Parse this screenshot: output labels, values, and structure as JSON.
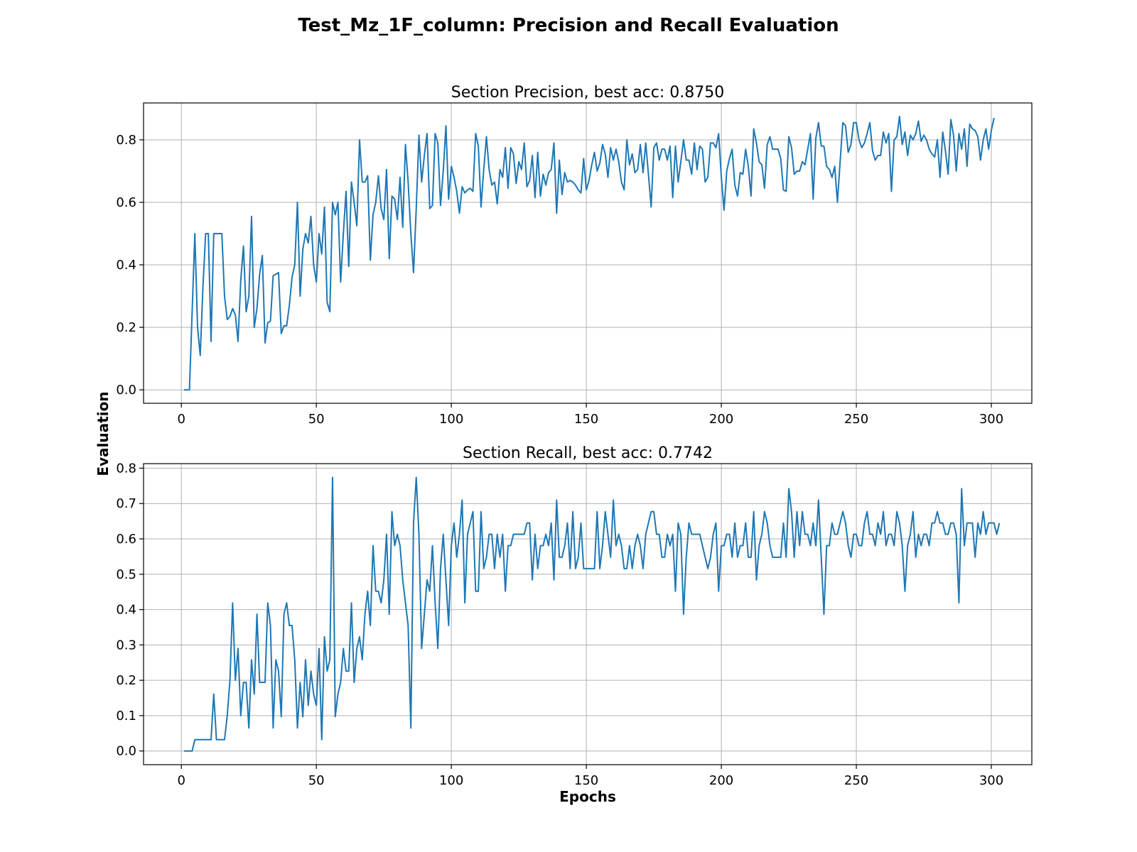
{
  "figure": {
    "title": "Test_Mz_1F_column:  Precision and Recall Evaluation",
    "xlabel": "Epochs",
    "ylabel": "Evaluation"
  },
  "chart_data": [
    {
      "type": "line",
      "title": "Section Precision, best acc: 0.8750",
      "xlim": [
        -14,
        315
      ],
      "ylim": [
        -0.043,
        0.918
      ],
      "xticks": [
        0,
        50,
        100,
        150,
        200,
        250,
        300
      ],
      "yticks": [
        0.0,
        0.2,
        0.4,
        0.6,
        0.8
      ],
      "ytick_labels": [
        "0.0",
        "0.2",
        "0.4",
        "0.6",
        "0.8"
      ],
      "grid": true,
      "color": "#1f77b4",
      "x_start": 1,
      "values": [
        0,
        0,
        0,
        0.25,
        0.5,
        0.2,
        0.11,
        0.33,
        0.5,
        0.5,
        0.155,
        0.5,
        0.5,
        0.5,
        0.5,
        0.3,
        0.225,
        0.235,
        0.26,
        0.24,
        0.155,
        0.35,
        0.46,
        0.25,
        0.3,
        0.555,
        0.2,
        0.26,
        0.37,
        0.43,
        0.15,
        0.215,
        0.22,
        0.365,
        0.37,
        0.375,
        0.18,
        0.205,
        0.205,
        0.27,
        0.36,
        0.4,
        0.6,
        0.3,
        0.45,
        0.5,
        0.47,
        0.555,
        0.4,
        0.345,
        0.5,
        0.435,
        0.585,
        0.28,
        0.25,
        0.6,
        0.56,
        0.6,
        0.345,
        0.5,
        0.635,
        0.395,
        0.665,
        0.6,
        0.525,
        0.8,
        0.665,
        0.665,
        0.685,
        0.415,
        0.56,
        0.6,
        0.685,
        0.58,
        0.545,
        0.705,
        0.42,
        0.62,
        0.61,
        0.545,
        0.68,
        0.52,
        0.785,
        0.665,
        0.5,
        0.375,
        0.58,
        0.815,
        0.665,
        0.75,
        0.82,
        0.58,
        0.59,
        0.82,
        0.79,
        0.59,
        0.7,
        0.845,
        0.61,
        0.715,
        0.68,
        0.635,
        0.565,
        0.65,
        0.63,
        0.64,
        0.645,
        0.635,
        0.82,
        0.78,
        0.585,
        0.705,
        0.81,
        0.705,
        0.655,
        0.665,
        0.595,
        0.705,
        0.68,
        0.775,
        0.645,
        0.775,
        0.755,
        0.66,
        0.73,
        0.705,
        0.79,
        0.65,
        0.67,
        0.75,
        0.615,
        0.76,
        0.62,
        0.69,
        0.655,
        0.695,
        0.705,
        0.79,
        0.565,
        0.735,
        0.625,
        0.695,
        0.665,
        0.67,
        0.665,
        0.655,
        0.64,
        0.63,
        0.74,
        0.64,
        0.67,
        0.72,
        0.76,
        0.7,
        0.725,
        0.785,
        0.755,
        0.68,
        0.775,
        0.735,
        0.77,
        0.73,
        0.665,
        0.64,
        0.8,
        0.72,
        0.755,
        0.695,
        0.705,
        0.785,
        0.695,
        0.79,
        0.69,
        0.585,
        0.775,
        0.79,
        0.735,
        0.77,
        0.77,
        0.735,
        0.78,
        0.615,
        0.78,
        0.665,
        0.73,
        0.8,
        0.735,
        0.735,
        0.69,
        0.79,
        0.705,
        0.78,
        0.77,
        0.665,
        0.68,
        0.79,
        0.79,
        0.775,
        0.82,
        0.68,
        0.575,
        0.7,
        0.74,
        0.77,
        0.655,
        0.62,
        0.695,
        0.69,
        0.77,
        0.715,
        0.62,
        0.835,
        0.79,
        0.73,
        0.72,
        0.645,
        0.785,
        0.81,
        0.77,
        0.77,
        0.77,
        0.74,
        0.64,
        0.635,
        0.81,
        0.775,
        0.69,
        0.7,
        0.7,
        0.73,
        0.72,
        0.77,
        0.82,
        0.61,
        0.805,
        0.855,
        0.78,
        0.78,
        0.715,
        0.705,
        0.68,
        0.715,
        0.6,
        0.73,
        0.855,
        0.845,
        0.76,
        0.785,
        0.855,
        0.855,
        0.8,
        0.775,
        0.79,
        0.82,
        0.855,
        0.765,
        0.735,
        0.75,
        0.75,
        0.825,
        0.79,
        0.82,
        0.635,
        0.8,
        0.81,
        0.875,
        0.785,
        0.825,
        0.75,
        0.815,
        0.8,
        0.82,
        0.86,
        0.795,
        0.815,
        0.8,
        0.77,
        0.755,
        0.745,
        0.8,
        0.68,
        0.825,
        0.765,
        0.69,
        0.865,
        0.815,
        0.7,
        0.82,
        0.77,
        0.835,
        0.715,
        0.85,
        0.835,
        0.83,
        0.81,
        0.735,
        0.8,
        0.835,
        0.77,
        0.83,
        0.87
      ]
    },
    {
      "type": "line",
      "title": "Section Recall, best acc: 0.7742",
      "xlim": [
        -14,
        315
      ],
      "ylim": [
        -0.0387,
        0.8129
      ],
      "xticks": [
        0,
        50,
        100,
        150,
        200,
        250,
        300
      ],
      "yticks": [
        0.0,
        0.1,
        0.2,
        0.3,
        0.4,
        0.5,
        0.6,
        0.7,
        0.8
      ],
      "ytick_labels": [
        "0.0",
        "0.1",
        "0.2",
        "0.3",
        "0.4",
        "0.5",
        "0.6",
        "0.7",
        "0.8"
      ],
      "grid": true,
      "color": "#1f77b4",
      "x_start": 1,
      "values": [
        0,
        0,
        0,
        0,
        0.032,
        0.032,
        0.032,
        0.032,
        0.032,
        0.032,
        0.032,
        0.161,
        0.032,
        0.032,
        0.032,
        0.032,
        0.1,
        0.2,
        0.419,
        0.2,
        0.29,
        0.1,
        0.194,
        0.194,
        0.065,
        0.258,
        0.161,
        0.387,
        0.194,
        0.194,
        0.194,
        0.419,
        0.355,
        0.065,
        0.258,
        0.226,
        0.097,
        0.387,
        0.419,
        0.355,
        0.355,
        0.258,
        0.065,
        0.194,
        0.097,
        0.258,
        0.129,
        0.226,
        0.161,
        0.129,
        0.29,
        0.032,
        0.323,
        0.226,
        0.258,
        0.774,
        0.097,
        0.161,
        0.194,
        0.29,
        0.226,
        0.226,
        0.419,
        0.194,
        0.29,
        0.323,
        0.258,
        0.387,
        0.452,
        0.355,
        0.581,
        0.452,
        0.452,
        0.419,
        0.484,
        0.613,
        0.387,
        0.677,
        0.581,
        0.613,
        0.581,
        0.484,
        0.419,
        0.355,
        0.065,
        0.645,
        0.774,
        0.613,
        0.29,
        0.387,
        0.484,
        0.452,
        0.581,
        0.419,
        0.29,
        0.516,
        0.613,
        0.484,
        0.355,
        0.581,
        0.645,
        0.548,
        0.613,
        0.71,
        0.419,
        0.613,
        0.645,
        0.677,
        0.452,
        0.452,
        0.677,
        0.516,
        0.548,
        0.613,
        0.613,
        0.516,
        0.613,
        0.548,
        0.613,
        0.452,
        0.581,
        0.581,
        0.613,
        0.613,
        0.613,
        0.613,
        0.613,
        0.645,
        0.645,
        0.484,
        0.613,
        0.516,
        0.581,
        0.581,
        0.613,
        0.581,
        0.645,
        0.484,
        0.71,
        0.548,
        0.548,
        0.581,
        0.645,
        0.516,
        0.677,
        0.516,
        0.548,
        0.645,
        0.516,
        0.516,
        0.516,
        0.516,
        0.516,
        0.677,
        0.516,
        0.581,
        0.677,
        0.613,
        0.548,
        0.71,
        0.581,
        0.613,
        0.581,
        0.516,
        0.516,
        0.581,
        0.516,
        0.581,
        0.613,
        0.581,
        0.516,
        0.613,
        0.645,
        0.677,
        0.677,
        0.613,
        0.613,
        0.548,
        0.548,
        0.613,
        0.581,
        0.613,
        0.452,
        0.645,
        0.613,
        0.387,
        0.548,
        0.645,
        0.613,
        0.613,
        0.613,
        0.613,
        0.581,
        0.548,
        0.516,
        0.548,
        0.613,
        0.645,
        0.452,
        0.581,
        0.581,
        0.613,
        0.613,
        0.548,
        0.645,
        0.548,
        0.581,
        0.581,
        0.645,
        0.548,
        0.548,
        0.677,
        0.484,
        0.581,
        0.613,
        0.677,
        0.645,
        0.581,
        0.548,
        0.548,
        0.548,
        0.548,
        0.645,
        0.548,
        0.742,
        0.677,
        0.548,
        0.677,
        0.581,
        0.677,
        0.613,
        0.613,
        0.581,
        0.645,
        0.581,
        0.71,
        0.548,
        0.387,
        0.581,
        0.581,
        0.645,
        0.613,
        0.613,
        0.645,
        0.677,
        0.645,
        0.581,
        0.548,
        0.613,
        0.613,
        0.581,
        0.581,
        0.645,
        0.677,
        0.613,
        0.613,
        0.581,
        0.645,
        0.613,
        0.677,
        0.581,
        0.613,
        0.613,
        0.581,
        0.677,
        0.645,
        0.581,
        0.452,
        0.581,
        0.613,
        0.677,
        0.548,
        0.613,
        0.581,
        0.613,
        0.613,
        0.581,
        0.645,
        0.645,
        0.677,
        0.645,
        0.645,
        0.613,
        0.613,
        0.645,
        0.645,
        0.613,
        0.419,
        0.742,
        0.581,
        0.645,
        0.645,
        0.645,
        0.548,
        0.645,
        0.613,
        0.677,
        0.613,
        0.645,
        0.645,
        0.645,
        0.613,
        0.645
      ]
    }
  ]
}
